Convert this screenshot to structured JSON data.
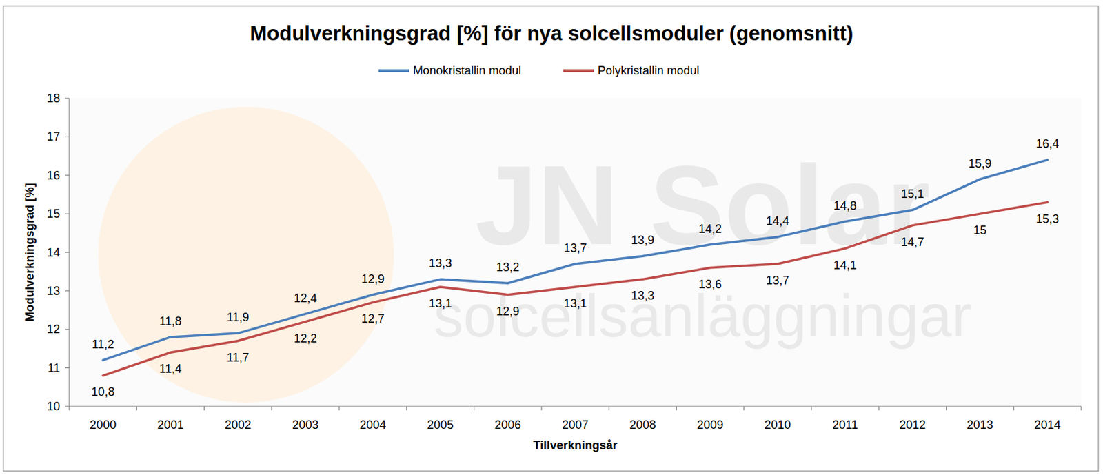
{
  "chart_data": {
    "type": "line",
    "title": "Modulverkningsgrad [%] för nya solcellsmoduler (genomsnitt)",
    "x_label": "Tillverkningsår",
    "y_label": "Modulverkningsgrad [%]",
    "annotations": [
      "JN Solar",
      "solcellsanläggningar"
    ],
    "categories": [
      "2000",
      "2001",
      "2002",
      "2003",
      "2004",
      "2005",
      "2006",
      "2007",
      "2008",
      "2009",
      "2010",
      "2011",
      "2012",
      "2013",
      "2014"
    ],
    "series": [
      {
        "name": "Monokristallin modul",
        "color": "#4a7ebb",
        "values": [
          11.2,
          11.8,
          11.9,
          12.4,
          12.9,
          13.3,
          13.2,
          13.7,
          13.9,
          14.2,
          14.4,
          14.8,
          15.1,
          15.9,
          16.4
        ],
        "value_labels": [
          "11,2",
          "11,8",
          "11,9",
          "12,4",
          "12,9",
          "13,3",
          "13,2",
          "13,7",
          "13,9",
          "14,2",
          "14,4",
          "14,8",
          "15,1",
          "15,9",
          "16,4"
        ]
      },
      {
        "name": "Polykristallin modul",
        "color": "#be4b48",
        "values": [
          10.8,
          11.4,
          11.7,
          12.2,
          12.7,
          13.1,
          12.9,
          13.1,
          13.3,
          13.6,
          13.7,
          14.1,
          14.7,
          15,
          15.3
        ],
        "value_labels": [
          "10,8",
          "11,4",
          "11,7",
          "12,2",
          "12,7",
          "13,1",
          "12,9",
          "13,1",
          "13,3",
          "13,6",
          "13,7",
          "14,1",
          "14,7",
          "15",
          "15,3"
        ]
      }
    ],
    "ylim": [
      10,
      18
    ],
    "yticks": [
      10,
      11,
      12,
      13,
      14,
      15,
      16,
      17,
      18
    ],
    "grid": false,
    "legend": "top",
    "data_labels": true
  }
}
